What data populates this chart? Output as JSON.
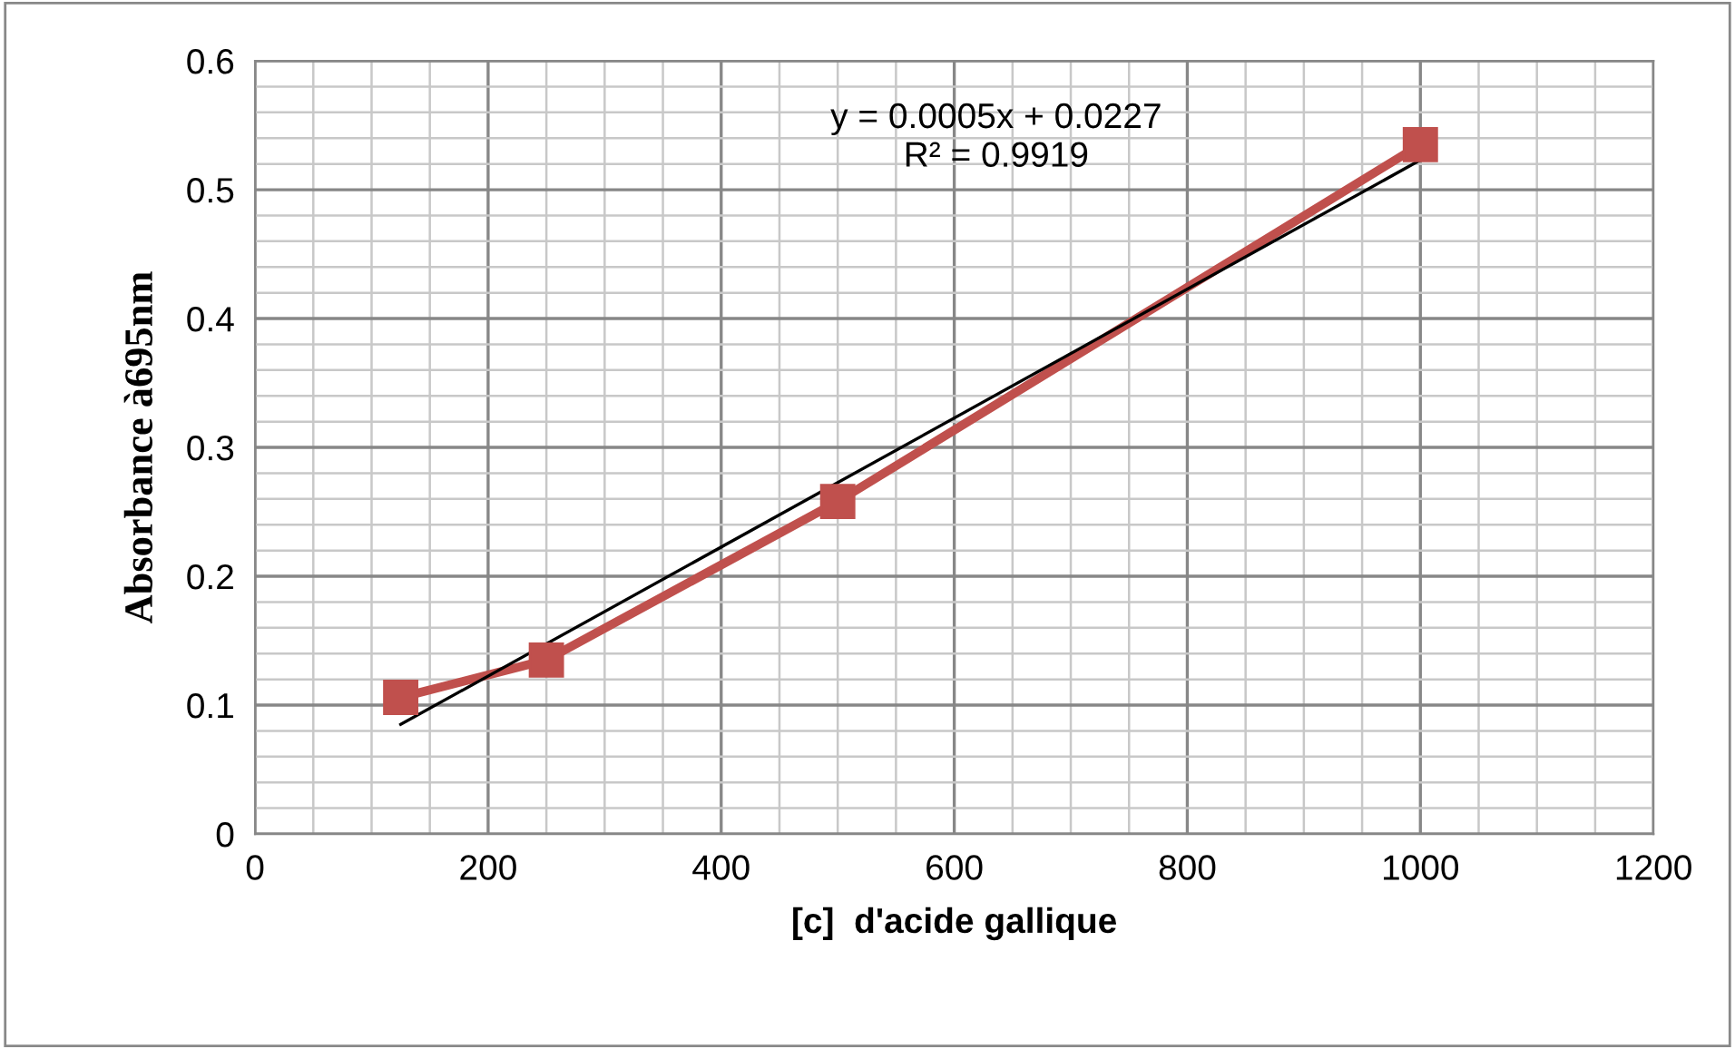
{
  "chart_data": {
    "type": "line",
    "xlabel": "[c]  d'acide gallique",
    "ylabel": "Absorbance à695nm",
    "series": [
      {
        "color": "#c0504d",
        "x": [
          125,
          250,
          500,
          1000
        ],
        "values": [
          0.106,
          0.135,
          0.258,
          0.535
        ],
        "marker": "square"
      },
      {
        "type": "line",
        "color": "#000000",
        "x": [
          125,
          1000
        ],
        "values": [
          0.085,
          0.523
        ],
        "marker": "none"
      }
    ],
    "annotations": [
      "y = 0.0005x + 0.0227",
      "R² = 0.9919"
    ],
    "xlim": [
      0,
      1200
    ],
    "xticks": [
      0,
      {
        "value": 50,
        "label": null
      },
      {
        "value": 100,
        "label": null
      },
      {
        "value": 150,
        "label": null
      },
      200,
      {
        "value": 250,
        "label": null
      },
      {
        "value": 300,
        "label": null
      },
      {
        "value": 350,
        "label": null
      },
      400,
      {
        "value": 450,
        "label": null
      },
      {
        "value": 500,
        "label": null
      },
      {
        "value": 550,
        "label": null
      },
      600,
      {
        "value": 650,
        "label": null
      },
      {
        "value": 700,
        "label": null
      },
      {
        "value": 750,
        "label": null
      },
      800,
      {
        "value": 850,
        "label": null
      },
      {
        "value": 900,
        "label": null
      },
      {
        "value": 950,
        "label": null
      },
      1000,
      {
        "value": 1050,
        "label": null
      },
      {
        "value": 1100,
        "label": null
      },
      {
        "value": 1150,
        "label": null
      },
      1200
    ],
    "ylim": [
      0,
      0.6
    ],
    "yticks": [
      0,
      {
        "value": 0.02,
        "label": null
      },
      {
        "value": 0.04,
        "label": null
      },
      {
        "value": 0.06,
        "label": null
      },
      {
        "value": 0.08,
        "label": null
      },
      0.1,
      {
        "value": 0.12,
        "label": null
      },
      {
        "value": 0.14,
        "label": null
      },
      {
        "value": 0.16,
        "label": null
      },
      {
        "value": 0.18,
        "label": null
      },
      0.2,
      {
        "value": 0.22,
        "label": null
      },
      {
        "value": 0.24,
        "label": null
      },
      {
        "value": 0.26,
        "label": null
      },
      {
        "value": 0.28,
        "label": null
      },
      0.3,
      {
        "value": 0.32,
        "label": null
      },
      {
        "value": 0.34,
        "label": null
      },
      {
        "value": 0.36,
        "label": null
      },
      {
        "value": 0.38,
        "label": null
      },
      0.4,
      {
        "value": 0.42,
        "label": null
      },
      {
        "value": 0.44,
        "label": null
      },
      {
        "value": 0.46,
        "label": null
      },
      {
        "value": 0.48,
        "label": null
      },
      0.5,
      {
        "value": 0.52,
        "label": null
      },
      {
        "value": 0.54,
        "label": null
      },
      {
        "value": 0.56,
        "label": null
      },
      {
        "value": 0.58,
        "label": null
      },
      0.6
    ],
    "grid": true
  }
}
